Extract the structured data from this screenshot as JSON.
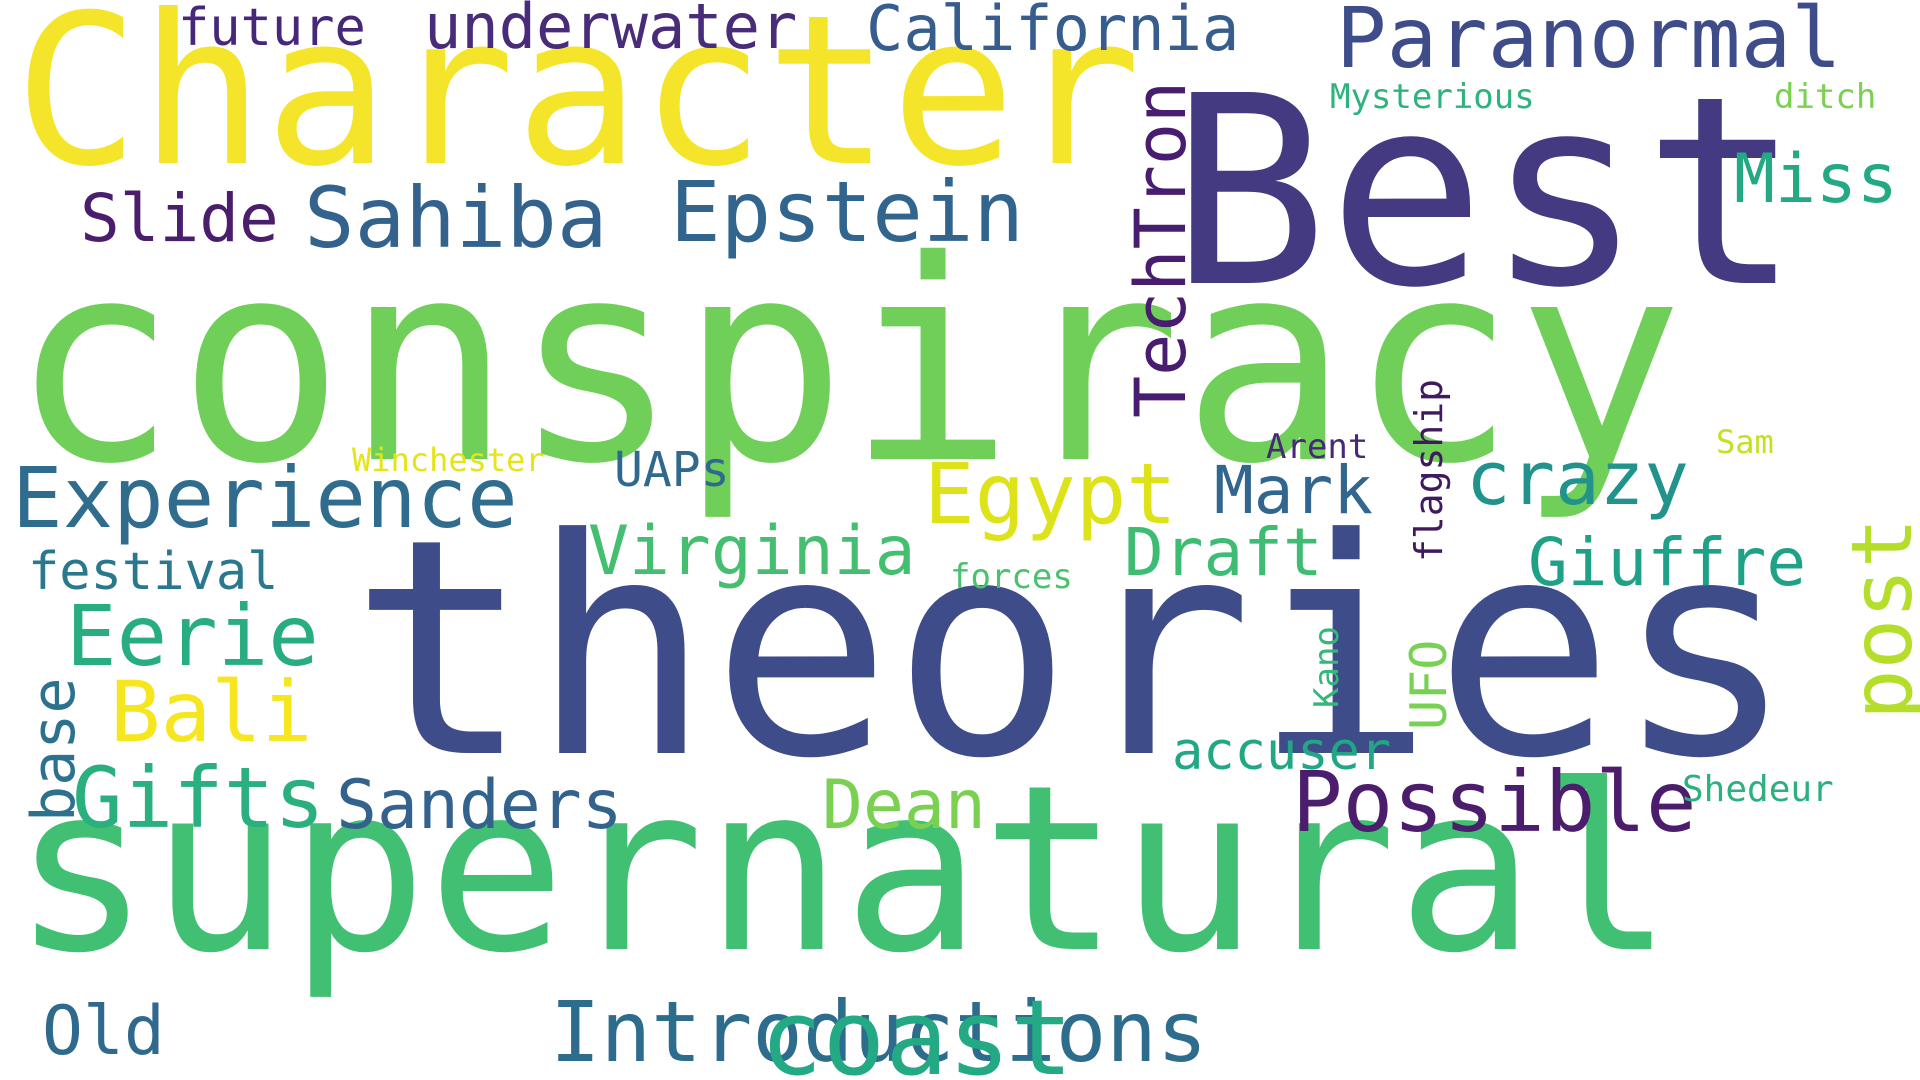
{
  "words": [
    {
      "text": "Character",
      "color": "#f5e52a",
      "rotated": false
    },
    {
      "text": "Best",
      "color": "#433a82",
      "rotated": false
    },
    {
      "text": "conspiracy",
      "color": "#6fcf58",
      "rotated": false
    },
    {
      "text": "theories",
      "color": "#3e4c8a",
      "rotated": false
    },
    {
      "text": "supernatural",
      "color": "#41bf72",
      "rotated": false
    },
    {
      "text": "future",
      "color": "#46277a",
      "rotated": false
    },
    {
      "text": "underwater",
      "color": "#482b79",
      "rotated": false
    },
    {
      "text": "California",
      "color": "#365d8d",
      "rotated": false
    },
    {
      "text": "Paranormal",
      "color": "#3e4c8a",
      "rotated": false
    },
    {
      "text": "Mysterious",
      "color": "#2eb37c",
      "rotated": false
    },
    {
      "text": "ditch",
      "color": "#7ad151",
      "rotated": false
    },
    {
      "text": "Slide",
      "color": "#4a1e6d",
      "rotated": false
    },
    {
      "text": "Sahiba",
      "color": "#33638d",
      "rotated": false
    },
    {
      "text": "Epstein",
      "color": "#32658e",
      "rotated": false
    },
    {
      "text": "Miss",
      "color": "#23a983",
      "rotated": false
    },
    {
      "text": "TechTron",
      "color": "#481d6f",
      "rotated": true
    },
    {
      "text": "Arent",
      "color": "#482878",
      "rotated": false
    },
    {
      "text": "Winchester",
      "color": "#e5e419",
      "rotated": false
    },
    {
      "text": "Sam",
      "color": "#c5e021",
      "rotated": false
    },
    {
      "text": "UAPs",
      "color": "#31688e",
      "rotated": false
    },
    {
      "text": "Experience",
      "color": "#2f6c8e",
      "rotated": false
    },
    {
      "text": "Egypt",
      "color": "#dde318",
      "rotated": false
    },
    {
      "text": "Mark",
      "color": "#31668e",
      "rotated": false
    },
    {
      "text": "crazy",
      "color": "#21928c",
      "rotated": false
    },
    {
      "text": "flagship",
      "color": "#3f1a5e",
      "rotated": true
    },
    {
      "text": "Virginia",
      "color": "#44bf70",
      "rotated": false
    },
    {
      "text": "Draft",
      "color": "#3fbc73",
      "rotated": false
    },
    {
      "text": "Giuffre",
      "color": "#1fa187",
      "rotated": false
    },
    {
      "text": "forces",
      "color": "#4ac16d",
      "rotated": false
    },
    {
      "text": "festival",
      "color": "#2a788e",
      "rotated": false
    },
    {
      "text": "post",
      "color": "#b5de2b",
      "rotated": true
    },
    {
      "text": "Eerie",
      "color": "#27ad81",
      "rotated": false
    },
    {
      "text": "UFO",
      "color": "#77d153",
      "rotated": true
    },
    {
      "text": "Kano",
      "color": "#35b779",
      "rotated": true
    },
    {
      "text": "Bali",
      "color": "#f6e620",
      "rotated": false
    },
    {
      "text": "accuser",
      "color": "#22a785",
      "rotated": false
    },
    {
      "text": "base",
      "color": "#2c728e",
      "rotated": true
    },
    {
      "text": "Gifts",
      "color": "#2aaf7f",
      "rotated": false
    },
    {
      "text": "Possible",
      "color": "#4b1d6c",
      "rotated": false
    },
    {
      "text": "Sanders",
      "color": "#33638d",
      "rotated": false
    },
    {
      "text": "Dean",
      "color": "#7ad151",
      "rotated": false
    },
    {
      "text": "Shedeur",
      "color": "#2cb17e",
      "rotated": false
    },
    {
      "text": "Old",
      "color": "#30698e",
      "rotated": false
    },
    {
      "text": "Introductions",
      "color": "#2e6c8e",
      "rotated": false
    },
    {
      "text": "coast",
      "color": "#23a983",
      "rotated": false
    }
  ]
}
